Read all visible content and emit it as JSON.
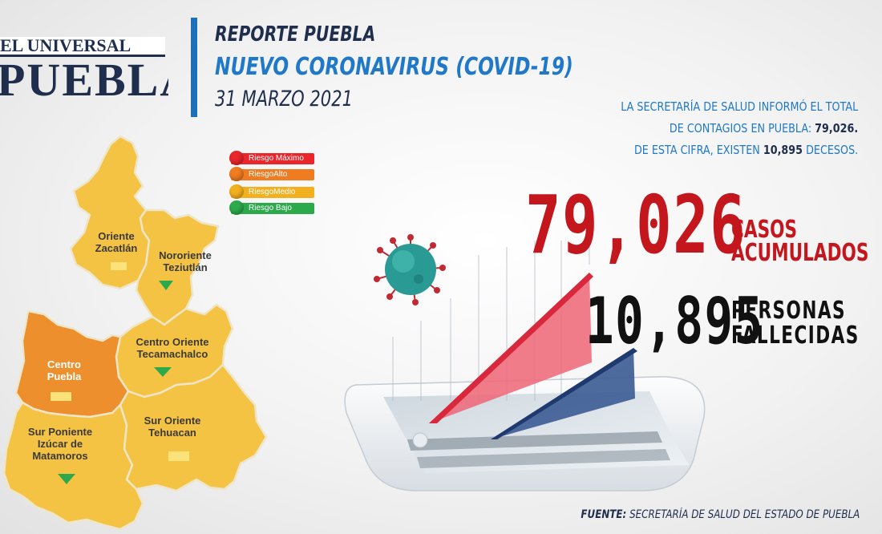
{
  "logo": {
    "top": "EL UNIVERSAL",
    "bottom": "PUEBLA"
  },
  "header": {
    "line1": "REPORTE PUEBLA",
    "line2": "NUEVO CORONAVIRUS (COVID-19)",
    "line3": "31 MARZO 2021"
  },
  "info": {
    "line1": "LA SECRETARÍA DE SALUD  INFORMÓ EL TOTAL",
    "line2_pre": "DE CONTAGIOS EN PUEBLA: ",
    "line2_val": "79,026.",
    "line3_pre": "DE ESTA CIFRA, EXISTEN ",
    "line3_val": "10,895",
    "line3_post": " DECESOS."
  },
  "stats": {
    "cases_value": "79,026",
    "cases_label_1": "CASOS",
    "cases_label_2": "ACUMULADOS",
    "deaths_value": "10,895",
    "deaths_label_1": "PERSONAS",
    "deaths_label_2": "FALLECIDAS"
  },
  "legend": [
    {
      "label": "Riesgo Máximo",
      "color": "#e8262b"
    },
    {
      "label": "RiesgoAlto",
      "color": "#f07c22"
    },
    {
      "label": "RiesgoMedio",
      "color": "#f2b01e"
    },
    {
      "label": "Riesgo Bajo",
      "color": "#2ca94a"
    }
  ],
  "regions": {
    "oriente_zacatlan": "Oriente\nZacatlán",
    "nororiente_teziutlan": "Nororiente\nTeziutlán",
    "centro_oriente": "Centro Oriente\nTecamachalco",
    "centro_puebla": "Centro\nPuebla",
    "sur_poniente": "Sur Poniente\nIzúcar de\nMatamoros",
    "sur_oriente": "Sur Oriente\nTehuacan"
  },
  "map_colors": {
    "yellow": "#f5c344",
    "orange": "#ec8f2c",
    "border": "#e8e0c0"
  },
  "source": {
    "label": "FUENTE:",
    "text": " SECRETARÍA DE SALUD DEL ESTADO DE PUEBLA"
  }
}
